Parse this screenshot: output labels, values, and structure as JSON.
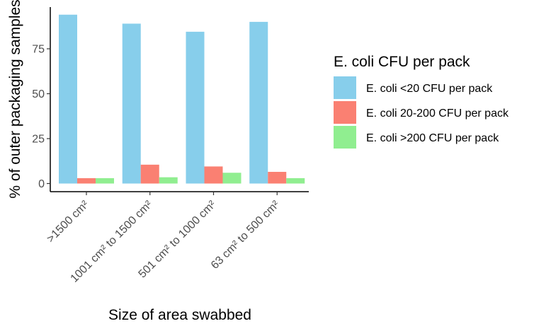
{
  "chart_data": {
    "type": "bar",
    "title": "",
    "xlabel": "Size of area swabbed",
    "ylabel": "% of outer packaging samples",
    "categories": [
      ">1500 cm²",
      "1001 cm² to 1500 cm²",
      "501 cm² to 1000 cm²",
      "63 cm² to 500 cm²"
    ],
    "ylim": [
      0,
      100
    ],
    "yticks": [
      0,
      25,
      50,
      75
    ],
    "ytick_labels": [
      "0",
      "25",
      "50",
      "75"
    ],
    "grid": false,
    "legend": {
      "title": "E. coli CFU per pack",
      "placement": "right"
    },
    "series": [
      {
        "name": "E. coli <20 CFU per pack",
        "color": "#87CEEB",
        "values": [
          94,
          89,
          84.5,
          90
        ]
      },
      {
        "name": "E. coli 20-200 CFU per pack",
        "color": "#FA8072",
        "values": [
          3,
          10.5,
          9.5,
          6.5
        ]
      },
      {
        "name": "E. coli >200 CFU per pack",
        "color": "#90EE90",
        "values": [
          3,
          3.5,
          6,
          3
        ]
      }
    ]
  }
}
